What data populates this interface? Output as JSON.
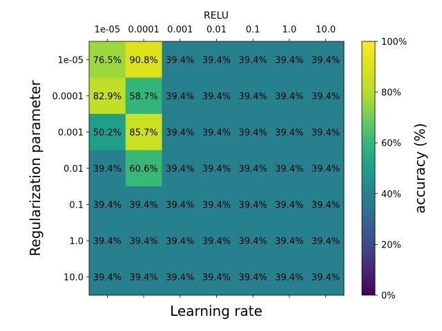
{
  "chart_data": {
    "type": "heatmap",
    "title": "RELU",
    "xlabel": "Learning rate",
    "ylabel": "Regularization parameter",
    "x_categories": [
      "1e-05",
      "0.0001",
      "0.001",
      "0.01",
      "0.1",
      "1.0",
      "10.0"
    ],
    "y_categories": [
      "1e-05",
      "0.0001",
      "0.001",
      "0.01",
      "0.1",
      "1.0",
      "10.0"
    ],
    "values": [
      [
        76.5,
        90.8,
        39.4,
        39.4,
        39.4,
        39.4,
        39.4
      ],
      [
        82.9,
        58.7,
        39.4,
        39.4,
        39.4,
        39.4,
        39.4
      ],
      [
        50.2,
        85.7,
        39.4,
        39.4,
        39.4,
        39.4,
        39.4
      ],
      [
        39.4,
        60.6,
        39.4,
        39.4,
        39.4,
        39.4,
        39.4
      ],
      [
        39.4,
        39.4,
        39.4,
        39.4,
        39.4,
        39.4,
        39.4
      ],
      [
        39.4,
        39.4,
        39.4,
        39.4,
        39.4,
        39.4,
        39.4
      ],
      [
        39.4,
        39.4,
        39.4,
        39.4,
        39.4,
        39.4,
        39.4
      ]
    ],
    "value_suffix": "%",
    "colorbar": {
      "label": "accuracy (%)",
      "range": [
        0,
        100
      ],
      "ticks": [
        "0%",
        "20%",
        "40%",
        "60%",
        "80%",
        "100%"
      ],
      "colormap": "viridis"
    },
    "x_tick_position": "top",
    "grid": false
  }
}
